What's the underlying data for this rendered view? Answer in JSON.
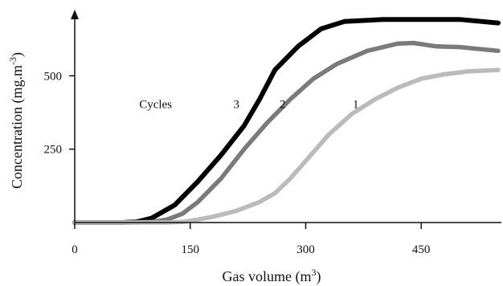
{
  "chart_data": {
    "type": "line",
    "title": "",
    "xlabel": "Gas volume (m",
    "xlabel_sup": "3",
    "xlabel_end": ")",
    "ylabel": "Concentration (mg.m",
    "ylabel_sup": "-3",
    "ylabel_end": ")",
    "xlim": [
      0,
      550
    ],
    "ylim": [
      0,
      720
    ],
    "xticks": [
      0,
      150,
      300,
      450
    ],
    "xtick_labels": [
      "0",
      "150",
      "300",
      "450"
    ],
    "yticks": [
      250,
      500
    ],
    "ytick_labels": [
      "250",
      "500"
    ],
    "grid": false,
    "annotations": {
      "cycles_label": "Cycles",
      "labels": [
        {
          "text": "3",
          "x": 210,
          "y": 390
        },
        {
          "text": "2",
          "x": 270,
          "y": 390
        },
        {
          "text": "1",
          "x": 365,
          "y": 390
        }
      ],
      "cycles_pos": {
        "x": 105,
        "y": 390
      }
    },
    "series": [
      {
        "label": "3",
        "color": "#000000",
        "points": [
          [
            0,
            0
          ],
          [
            60,
            0
          ],
          [
            80,
            2
          ],
          [
            100,
            15
          ],
          [
            130,
            60
          ],
          [
            160,
            140
          ],
          [
            190,
            230
          ],
          [
            220,
            330
          ],
          [
            240,
            420
          ],
          [
            260,
            520
          ],
          [
            290,
            600
          ],
          [
            320,
            660
          ],
          [
            350,
            685
          ],
          [
            400,
            692
          ],
          [
            450,
            692
          ],
          [
            500,
            692
          ],
          [
            550,
            680
          ]
        ]
      },
      {
        "label": "2",
        "color": "#7a7a7a",
        "points": [
          [
            0,
            0
          ],
          [
            80,
            0
          ],
          [
            100,
            2
          ],
          [
            120,
            10
          ],
          [
            140,
            30
          ],
          [
            160,
            70
          ],
          [
            190,
            150
          ],
          [
            220,
            250
          ],
          [
            250,
            340
          ],
          [
            280,
            420
          ],
          [
            310,
            490
          ],
          [
            340,
            540
          ],
          [
            380,
            585
          ],
          [
            420,
            610
          ],
          [
            440,
            612
          ],
          [
            470,
            600
          ],
          [
            500,
            598
          ],
          [
            550,
            585
          ]
        ]
      },
      {
        "label": "1",
        "color": "#bbbbbb",
        "points": [
          [
            0,
            0
          ],
          [
            120,
            0
          ],
          [
            140,
            2
          ],
          [
            160,
            10
          ],
          [
            180,
            20
          ],
          [
            210,
            40
          ],
          [
            240,
            70
          ],
          [
            260,
            100
          ],
          [
            280,
            150
          ],
          [
            300,
            210
          ],
          [
            330,
            300
          ],
          [
            360,
            370
          ],
          [
            390,
            420
          ],
          [
            420,
            460
          ],
          [
            450,
            490
          ],
          [
            480,
            505
          ],
          [
            510,
            515
          ],
          [
            550,
            520
          ]
        ]
      }
    ]
  }
}
